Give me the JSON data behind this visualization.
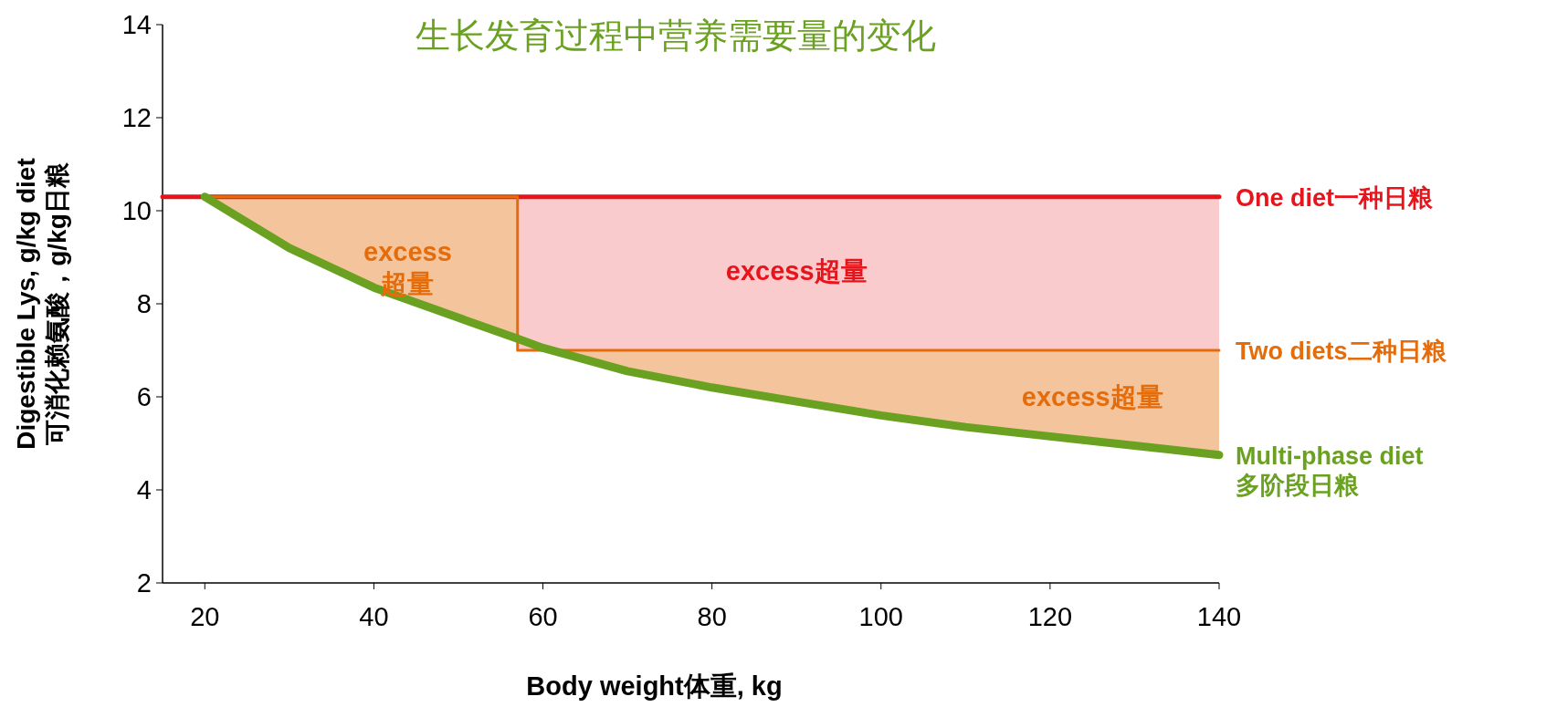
{
  "chart_data": {
    "type": "line",
    "title": "生长发育过程中营养需要量的变化",
    "xlabel": "Body weight体重, kg",
    "ylabel": "Digestible Lys, g/kg diet\n可消化赖氨酸，g/kg日粮",
    "xlim": [
      15,
      140
    ],
    "xticks": [
      20,
      40,
      60,
      80,
      100,
      120,
      140
    ],
    "ylim": [
      2,
      14
    ],
    "yticks": [
      2,
      4,
      6,
      8,
      10,
      12,
      14
    ],
    "series": [
      {
        "name": "One diet一种日粮",
        "color": "#e8141b",
        "x": [
          15,
          20,
          57,
          57,
          140
        ],
        "values": [
          10.3,
          10.3,
          10.3,
          10.3,
          10.3
        ],
        "lower": [
          null,
          null,
          null,
          7.0,
          7.0
        ],
        "upper": [
          null,
          null,
          null,
          10.3,
          10.3
        ]
      },
      {
        "name": "Two diets二种日粮",
        "color": "#e46c0a",
        "x": [
          20,
          30,
          40,
          50,
          57,
          57,
          60,
          70,
          80,
          90,
          100,
          110,
          120,
          130,
          140
        ],
        "values": [
          10.3,
          10.3,
          10.3,
          10.3,
          10.3,
          7.0,
          7.0,
          7.0,
          7.0,
          7.0,
          7.0,
          7.0,
          7.0,
          7.0,
          7.0
        ],
        "lower": [
          10.3,
          9.2,
          8.35,
          7.7,
          7.25,
          7.0,
          7.0,
          6.55,
          6.2,
          5.9,
          5.6,
          5.35,
          5.15,
          4.95,
          4.75
        ],
        "upper": [
          10.3,
          10.3,
          10.3,
          10.3,
          10.3,
          7.0,
          7.0,
          7.0,
          7.0,
          7.0,
          7.0,
          7.0,
          7.0,
          7.0,
          7.0
        ]
      },
      {
        "name": "Multi-phase diet\n多阶段日粮",
        "color": "#6aa121",
        "x": [
          20,
          30,
          40,
          50,
          57,
          60,
          70,
          80,
          90,
          100,
          110,
          120,
          130,
          140
        ],
        "values": [
          10.3,
          9.2,
          8.35,
          7.7,
          7.25,
          7.05,
          6.55,
          6.2,
          5.9,
          5.6,
          5.35,
          5.15,
          4.95,
          4.75
        ]
      }
    ],
    "annotations": [
      "excess\n超量",
      "excess超量",
      "excess超量"
    ]
  }
}
